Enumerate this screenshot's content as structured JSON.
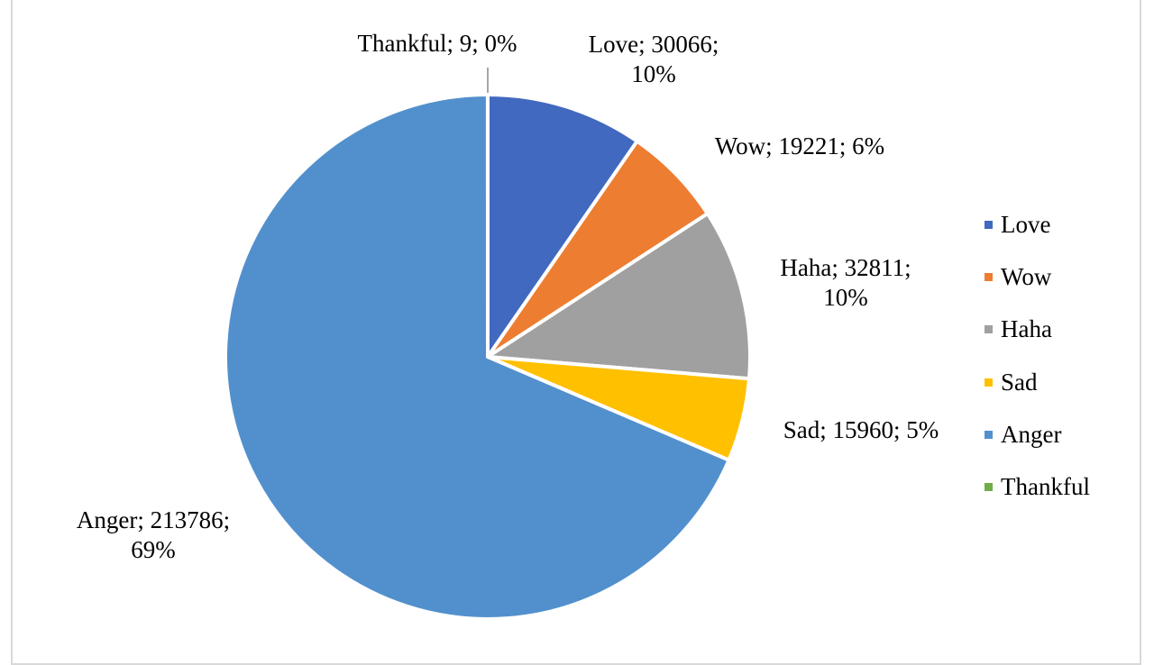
{
  "chart_data": {
    "type": "pie",
    "categories": [
      "Love",
      "Wow",
      "Haha",
      "Sad",
      "Anger",
      "Thankful"
    ],
    "values": [
      30066,
      19221,
      32811,
      15960,
      213786,
      9
    ],
    "value_labels": [
      "Love; 30066; 10%",
      "Wow; 19221; 6%",
      "Haha; 32811; 10%",
      "Sad; 15960; 5%",
      "Anger; 213786; 69%",
      "Thankful; 9; 0%"
    ],
    "colors": [
      "#4169bf",
      "#ed7d31",
      "#a0a0a0",
      "#ffc000",
      "#5290cd",
      "#70ad47"
    ],
    "legend": "right"
  }
}
